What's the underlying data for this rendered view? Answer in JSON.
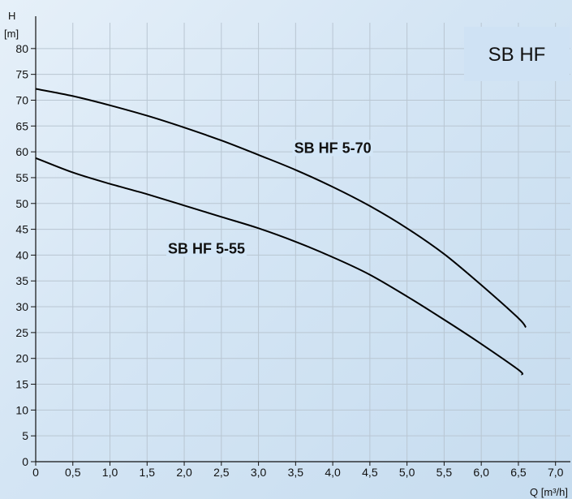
{
  "chart_data": {
    "type": "line",
    "title": "SB HF",
    "xlabel": "Q [m³/h]",
    "ylabel_top": "H",
    "ylabel_unit": "[m]",
    "xlim": [
      0,
      7.2
    ],
    "ylim": [
      0,
      85
    ],
    "x_ticks": [
      0,
      0.5,
      1.0,
      1.5,
      2.0,
      2.5,
      3.0,
      3.5,
      4.0,
      4.5,
      5.0,
      5.5,
      6.0,
      6.5,
      7.0
    ],
    "x_tick_labels": [
      "0",
      "0,5",
      "1,0",
      "1,5",
      "2,0",
      "2,5",
      "3,0",
      "3,5",
      "4,0",
      "4,5",
      "5,0",
      "5,5",
      "6,0",
      "6,5",
      "7,0"
    ],
    "y_ticks": [
      0,
      5,
      10,
      15,
      20,
      25,
      30,
      35,
      40,
      45,
      50,
      55,
      60,
      65,
      70,
      75,
      80
    ],
    "y_tick_labels": [
      "0",
      "5",
      "10",
      "15",
      "20",
      "25",
      "30",
      "35",
      "40",
      "45",
      "50",
      "55",
      "60",
      "65",
      "70",
      "75",
      "80"
    ],
    "grid": true,
    "series": [
      {
        "name": "SB HF 5-70",
        "color": "#000000",
        "x": [
          0,
          0.5,
          1.0,
          1.5,
          2.0,
          2.5,
          3.0,
          3.5,
          4.0,
          4.5,
          5.0,
          5.5,
          6.0,
          6.5,
          6.6
        ],
        "y": [
          72.2,
          70.8,
          69.0,
          67.0,
          64.7,
          62.2,
          59.4,
          56.5,
          53.2,
          49.5,
          45.2,
          40.2,
          34.2,
          27.8,
          26.0
        ],
        "label_x": 4.0,
        "label_y": 59.8
      },
      {
        "name": "SB HF 5-55",
        "color": "#000000",
        "x": [
          0,
          0.5,
          1.0,
          1.5,
          2.0,
          2.5,
          3.0,
          3.5,
          4.0,
          4.5,
          5.0,
          5.5,
          6.0,
          6.5,
          6.55
        ],
        "y": [
          58.8,
          56.0,
          53.8,
          51.8,
          49.6,
          47.4,
          45.2,
          42.6,
          39.6,
          36.2,
          32.0,
          27.5,
          22.8,
          17.8,
          16.8
        ],
        "label_x": 2.3,
        "label_y": 40.3
      }
    ]
  }
}
